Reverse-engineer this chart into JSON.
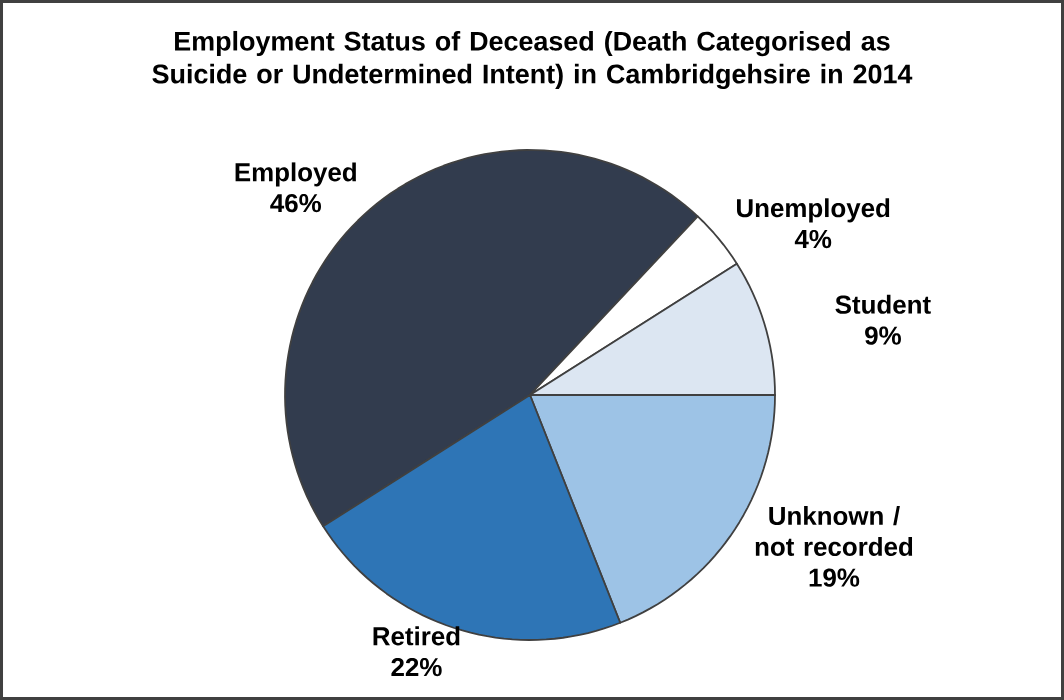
{
  "chart_data": {
    "type": "pie",
    "title": "Employment  Status of Deceased (Death Categorised as Suicide or Undetermined Intent) in Cambridgehsire in 2014",
    "categories": [
      "Employed",
      "Unemployed",
      "Student",
      "Unknown / not recorded",
      "Retired"
    ],
    "values": [
      46,
      4,
      9,
      19,
      22
    ],
    "colors": [
      "#323c4e",
      "#ffffff",
      "#dce6f2",
      "#9dc3e6",
      "#2e75b6"
    ],
    "value_labels": [
      "46%",
      "4%",
      "9%",
      "19%",
      "22%"
    ]
  }
}
